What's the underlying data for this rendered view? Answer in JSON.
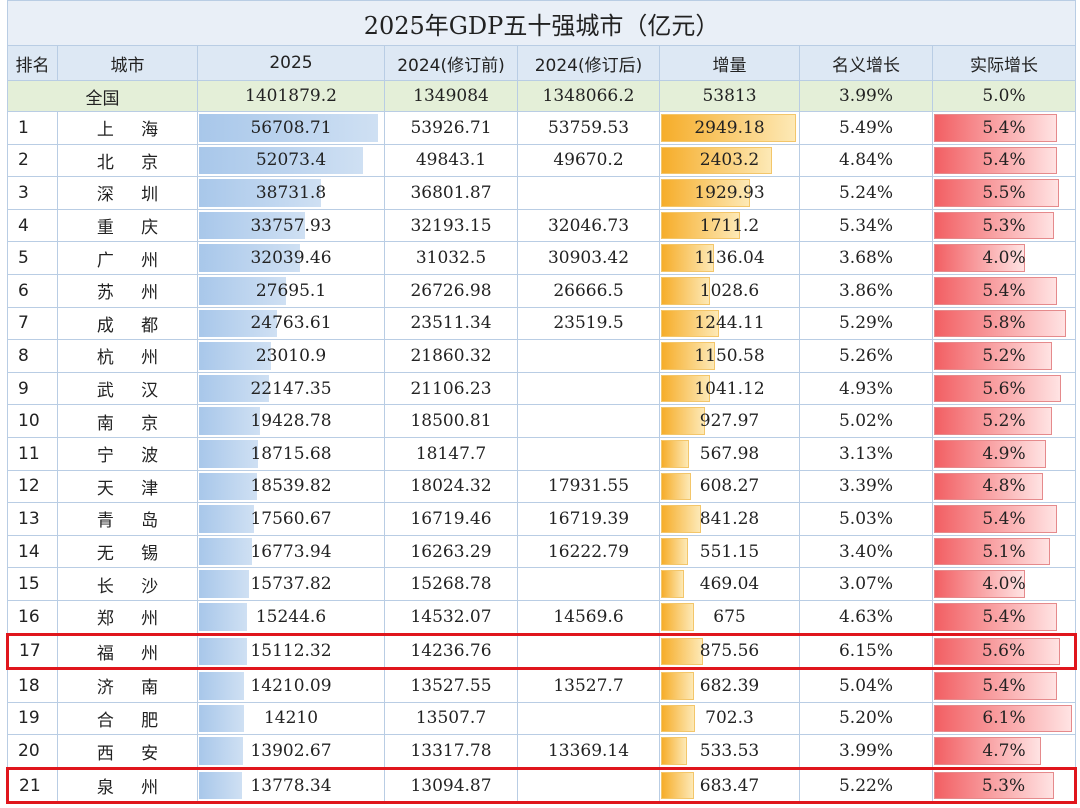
{
  "table": {
    "title": "2025年GDP五十强城市（亿元）",
    "headers": [
      "排名",
      "城市",
      "2025",
      "2024(修订前)",
      "2024(修订后)",
      "增量",
      "名义增长",
      "实际增长"
    ],
    "national": [
      "全国",
      "1401879.2",
      "1349084",
      "1348066.2",
      "53813",
      "3.99%",
      "5.0%"
    ],
    "rows": [
      [
        "1",
        "上海",
        "56708.71",
        "53926.71",
        "53759.53",
        "2949.18",
        "5.49%",
        "5.4%"
      ],
      [
        "2",
        "北京",
        "52073.4",
        "49843.1",
        "49670.2",
        "2403.2",
        "4.84%",
        "5.4%"
      ],
      [
        "3",
        "深圳",
        "38731.8",
        "36801.87",
        null,
        "1929.93",
        "5.24%",
        "5.5%"
      ],
      [
        "4",
        "重庆",
        "33757.93",
        "32193.15",
        "32046.73",
        "1711.2",
        "5.34%",
        "5.3%"
      ],
      [
        "5",
        "广州",
        "32039.46",
        "31032.5",
        "30903.42",
        "1136.04",
        "3.68%",
        "4.0%"
      ],
      [
        "6",
        "苏州",
        "27695.1",
        "26726.98",
        "26666.5",
        "1028.6",
        "3.86%",
        "5.4%"
      ],
      [
        "7",
        "成都",
        "24763.61",
        "23511.34",
        "23519.5",
        "1244.11",
        "5.29%",
        "5.8%"
      ],
      [
        "8",
        "杭州",
        "23010.9",
        "21860.32",
        null,
        "1150.58",
        "5.26%",
        "5.2%"
      ],
      [
        "9",
        "武汉",
        "22147.35",
        "21106.23",
        null,
        "1041.12",
        "4.93%",
        "5.6%"
      ],
      [
        "10",
        "南京",
        "19428.78",
        "18500.81",
        null,
        "927.97",
        "5.02%",
        "5.2%"
      ],
      [
        "11",
        "宁波",
        "18715.68",
        "18147.7",
        null,
        "567.98",
        "3.13%",
        "4.9%"
      ],
      [
        "12",
        "天津",
        "18539.82",
        "18024.32",
        "17931.55",
        "608.27",
        "3.39%",
        "4.8%"
      ],
      [
        "13",
        "青岛",
        "17560.67",
        "16719.46",
        "16719.39",
        "841.28",
        "5.03%",
        "5.4%"
      ],
      [
        "14",
        "无锡",
        "16773.94",
        "16263.29",
        "16222.79",
        "551.15",
        "3.40%",
        "5.1%"
      ],
      [
        "15",
        "长沙",
        "15737.82",
        "15268.78",
        null,
        "469.04",
        "3.07%",
        "4.0%"
      ],
      [
        "16",
        "郑州",
        "15244.6",
        "14532.07",
        "14569.6",
        "675",
        "4.63%",
        "5.4%"
      ],
      [
        "17",
        "福州",
        "15112.32",
        "14236.76",
        null,
        "875.56",
        "6.15%",
        "5.6%"
      ],
      [
        "18",
        "济南",
        "14210.09",
        "13527.55",
        "13527.7",
        "682.39",
        "5.04%",
        "5.4%"
      ],
      [
        "19",
        "合肥",
        "14210",
        "13507.7",
        null,
        "702.3",
        "5.20%",
        "6.1%"
      ],
      [
        "20",
        "西安",
        "13902.67",
        "13317.78",
        "13369.14",
        "533.53",
        "3.99%",
        "4.7%"
      ],
      [
        "21",
        "泉州",
        "13778.34",
        "13094.87",
        null,
        "683.47",
        "5.22%",
        "5.3%"
      ]
    ]
  }
}
